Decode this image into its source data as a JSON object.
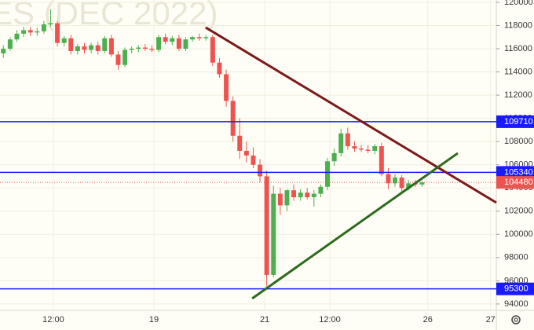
{
  "chart_data": {
    "type": "candlestick",
    "watermark": "ES (DEC 2022)",
    "x": [
      1,
      3,
      5,
      7,
      9,
      11,
      13,
      15,
      17,
      19,
      21,
      23,
      25,
      27,
      29,
      31,
      33,
      35,
      37,
      39,
      41,
      43,
      45,
      47,
      49,
      51,
      53,
      55,
      57,
      59,
      61,
      63,
      65,
      67,
      69,
      71,
      73,
      75,
      77,
      79,
      81,
      83,
      85,
      87,
      89,
      91,
      93,
      95,
      97,
      99,
      101,
      103,
      105,
      107,
      109,
      111,
      113,
      115,
      117,
      119,
      121,
      123,
      125
    ],
    "open": [
      115600,
      116000,
      116800,
      117300,
      117600,
      117400,
      117500,
      118100,
      118200,
      116500,
      116900,
      115800,
      116200,
      115900,
      116300,
      115800,
      116900,
      115500,
      114600,
      115900,
      116000,
      116100,
      116000,
      115900,
      117000,
      116600,
      116900,
      116000,
      116800,
      117000,
      116900,
      117000,
      114800,
      113800,
      111500,
      108500,
      107200,
      106800,
      106000,
      105000,
      96500,
      103500,
      102500,
      103800,
      103200,
      103600,
      103200,
      103500,
      104100,
      106300,
      107000,
      108700,
      107600,
      107400,
      107300,
      107200,
      107600,
      105200,
      104400,
      104900,
      104000,
      104400,
      104300
    ],
    "high": [
      116300,
      117000,
      117600,
      117900,
      117900,
      117800,
      118400,
      119400,
      118400,
      117100,
      117200,
      116400,
      116500,
      116500,
      116600,
      117100,
      117200,
      115800,
      116100,
      116200,
      116300,
      116400,
      116300,
      117200,
      117300,
      117100,
      117200,
      117000,
      117100,
      117300,
      117200,
      117200,
      115200,
      114200,
      111900,
      110000,
      108000,
      107500,
      106500,
      105500,
      104200,
      104000,
      103900,
      104300,
      103900,
      104000,
      103800,
      104300,
      106600,
      107400,
      109100,
      109200,
      108000,
      107700,
      107700,
      107800,
      107900,
      105700,
      105200,
      105100,
      104700,
      104700,
      104600
    ],
    "low": [
      115200,
      115800,
      116600,
      117000,
      117100,
      117100,
      117300,
      117900,
      116200,
      116200,
      115500,
      115500,
      115600,
      115600,
      115500,
      115600,
      115300,
      114200,
      114400,
      115600,
      115700,
      115800,
      115700,
      115700,
      116400,
      116300,
      115800,
      115800,
      116600,
      116700,
      116700,
      114500,
      113500,
      111000,
      108000,
      106500,
      106200,
      105700,
      104500,
      95500,
      96300,
      101700,
      102000,
      102900,
      102900,
      103000,
      102400,
      103200,
      103800,
      105900,
      106700,
      107300,
      107100,
      107100,
      107000,
      106900,
      105000,
      103900,
      104100,
      103700,
      103800,
      104100,
      104100
    ],
    "close": [
      116000,
      116800,
      117300,
      117600,
      117400,
      117500,
      118100,
      118200,
      116500,
      116900,
      115800,
      116200,
      115900,
      116300,
      115800,
      116900,
      115500,
      114600,
      115900,
      116000,
      116100,
      116000,
      115900,
      117000,
      116600,
      116900,
      116000,
      116800,
      117000,
      116900,
      117000,
      114800,
      113800,
      111500,
      108500,
      107200,
      106800,
      106000,
      105000,
      96500,
      103500,
      102500,
      103800,
      103200,
      103600,
      103200,
      103500,
      104100,
      106300,
      107000,
      108700,
      107600,
      107400,
      107300,
      107200,
      107600,
      105200,
      104400,
      104900,
      104000,
      104400,
      104300,
      104480
    ],
    "up_color": "#4caf50",
    "down_color": "#ef5350",
    "xlim": [
      0,
      147
    ],
    "ylim": [
      93450,
      120200
    ],
    "xticks": [
      {
        "value": 15.8,
        "label": "12:00"
      },
      {
        "value": 45.6,
        "label": "19"
      },
      {
        "value": 78.4,
        "label": "21"
      },
      {
        "value": 97.7,
        "label": "12:00"
      },
      {
        "value": 126.7,
        "label": "26"
      },
      {
        "value": 145.3,
        "label": "27"
      }
    ],
    "yticks": [
      94000,
      96000,
      98000,
      100000,
      102000,
      104000,
      106000,
      108000,
      110000,
      112000,
      114000,
      116000,
      118000,
      120000
    ],
    "grid": true,
    "levels": [
      109710,
      105340,
      95300
    ],
    "level_color": "#1a1aff",
    "last_price": 104480,
    "last_price_color": "#ef5350",
    "trendlines": [
      {
        "color": "#7b1a1a",
        "x": [
          60.9,
          147
        ],
        "y": [
          117833,
          102735
        ]
      },
      {
        "color": "#2d6a1f",
        "x": [
          74.7,
          135.6
        ],
        "y": [
          94475,
          107000
        ]
      }
    ]
  }
}
